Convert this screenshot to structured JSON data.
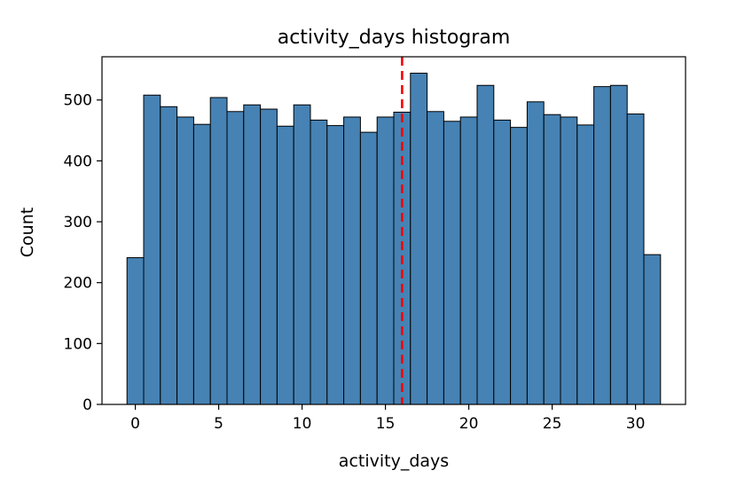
{
  "chart_data": {
    "type": "bar",
    "title": "activity_days histogram",
    "xlabel": "activity_days",
    "ylabel": "Count",
    "bin_width": 1,
    "x": [
      0,
      1,
      2,
      3,
      4,
      5,
      6,
      7,
      8,
      9,
      10,
      11,
      12,
      13,
      14,
      15,
      16,
      17,
      18,
      19,
      20,
      21,
      22,
      23,
      24,
      25,
      26,
      27,
      28,
      29,
      30,
      31
    ],
    "values": [
      241,
      508,
      489,
      472,
      460,
      504,
      481,
      492,
      485,
      457,
      492,
      467,
      458,
      472,
      447,
      472,
      480,
      544,
      481,
      465,
      472,
      524,
      467,
      455,
      497,
      476,
      472,
      459,
      522,
      524,
      477,
      246
    ],
    "xlim": [
      -2,
      33
    ],
    "ylim": [
      0,
      571
    ],
    "xticks": [
      0,
      5,
      10,
      15,
      20,
      25,
      30
    ],
    "yticks": [
      0,
      100,
      200,
      300,
      400,
      500
    ],
    "grid": false,
    "reference_line": {
      "x": 16,
      "color": "#ff0000",
      "style": "dashed"
    },
    "colors": {
      "bar_fill": "#4682b4",
      "bar_edge": "#000000",
      "axes": "#000000"
    }
  }
}
